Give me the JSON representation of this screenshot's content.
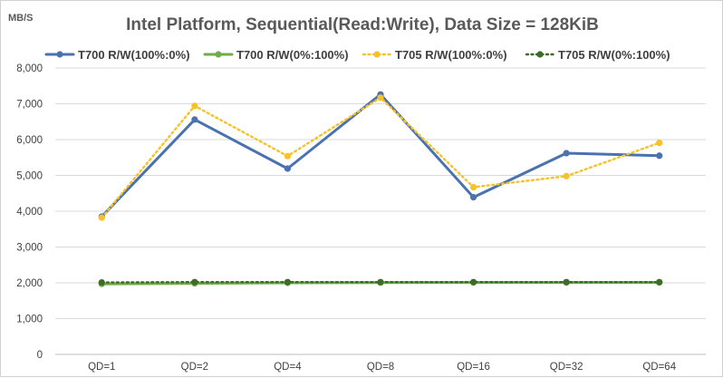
{
  "chart_data": {
    "type": "line",
    "title": "Intel Platform, Sequential(Read:Write),  Data Size = 128KiB",
    "ylabel": "MB/S",
    "xlabel": "",
    "categories": [
      "QD=1",
      "QD=2",
      "QD=4",
      "QD=8",
      "QD=16",
      "QD=32",
      "QD=64"
    ],
    "ylim": [
      0,
      8000
    ],
    "yticks": [
      0,
      1000,
      2000,
      3000,
      4000,
      5000,
      6000,
      7000,
      8000
    ],
    "ytick_labels": [
      "0",
      "1,000",
      "2,000",
      "3,000",
      "4,000",
      "5,000",
      "6,000",
      "7,000",
      "8,000"
    ],
    "grid": true,
    "legend_position": "top",
    "series": [
      {
        "name": "T700 R/W(100%:0%)",
        "values": [
          3850,
          6560,
          5190,
          7260,
          4390,
          5620,
          5550
        ],
        "color": "#4a72b0",
        "style": "solid"
      },
      {
        "name": "T700 R/W(0%:100%)",
        "values": [
          1970,
          1985,
          2000,
          2005,
          2010,
          2010,
          2010
        ],
        "color": "#70ad47",
        "style": "solid"
      },
      {
        "name": "T705 R/W(100%:0%)",
        "values": [
          3820,
          6940,
          5540,
          7170,
          4670,
          4980,
          5910
        ],
        "color": "#f5c228",
        "style": "dotted"
      },
      {
        "name": "T705 R/W(0%:100%)",
        "values": [
          2010,
          2020,
          2020,
          2020,
          2020,
          2020,
          2020
        ],
        "color": "#3d6b28",
        "style": "dotted"
      }
    ]
  }
}
